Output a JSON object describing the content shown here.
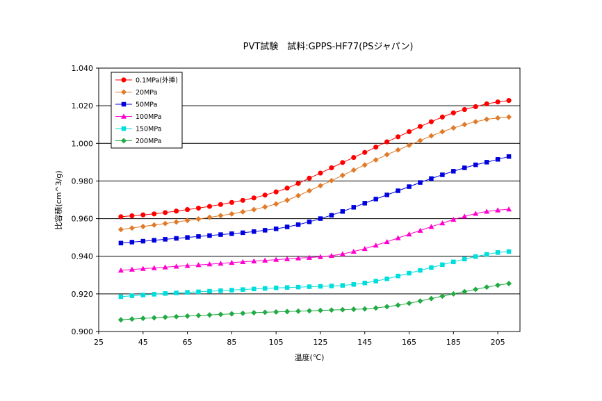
{
  "chart_data": {
    "type": "line",
    "title": "PVT試験　試料:GPPS-HF77(PSジャパン)",
    "xlabel": "温度(℃)",
    "ylabel": "比容積(cm^3/g)",
    "xlim": [
      25,
      215
    ],
    "ylim": [
      0.9,
      1.04
    ],
    "xticks": [
      "25",
      "45",
      "65",
      "85",
      "105",
      "125",
      "145",
      "165",
      "185",
      "205"
    ],
    "yticks": [
      "0.900",
      "0.920",
      "0.940",
      "0.960",
      "0.980",
      "1.000",
      "1.020",
      "1.040"
    ],
    "grid": "horizontal",
    "legend_position": "top-left",
    "x": [
      35,
      40,
      45,
      50,
      55,
      60,
      65,
      70,
      75,
      80,
      85,
      90,
      95,
      100,
      105,
      110,
      115,
      120,
      125,
      130,
      135,
      140,
      145,
      150,
      155,
      160,
      165,
      170,
      175,
      180,
      185,
      190,
      195,
      200,
      205,
      210
    ],
    "series": [
      {
        "name": "0.1MPa(外挿)",
        "color": "#ff0000",
        "marker": "circle",
        "values": [
          0.961,
          0.9615,
          0.962,
          0.9625,
          0.9632,
          0.964,
          0.9648,
          0.9656,
          0.9665,
          0.9675,
          0.9686,
          0.9697,
          0.971,
          0.9725,
          0.9742,
          0.9762,
          0.9787,
          0.9815,
          0.9842,
          0.987,
          0.9898,
          0.9925,
          0.9952,
          0.998,
          1.0008,
          1.0035,
          1.0062,
          1.009,
          1.0115,
          1.014,
          1.0162,
          1.018,
          1.0195,
          1.021,
          1.022,
          1.0228
        ]
      },
      {
        "name": "20MPa",
        "color": "#e07b2a",
        "marker": "diamond",
        "values": [
          0.9542,
          0.955,
          0.9558,
          0.9566,
          0.9574,
          0.9582,
          0.959,
          0.9598,
          0.9607,
          0.9616,
          0.9625,
          0.9636,
          0.9648,
          0.9662,
          0.9678,
          0.9698,
          0.9722,
          0.9748,
          0.9775,
          0.9802,
          0.983,
          0.9858,
          0.9885,
          0.9912,
          0.994,
          0.9965,
          0.999,
          1.0015,
          1.004,
          1.0062,
          1.0082,
          1.01,
          1.0115,
          1.0128,
          1.0135,
          1.014
        ]
      },
      {
        "name": "50MPa",
        "color": "#0000dd",
        "marker": "square",
        "values": [
          0.947,
          0.9475,
          0.948,
          0.9485,
          0.949,
          0.9495,
          0.95,
          0.9505,
          0.951,
          0.9515,
          0.952,
          0.9525,
          0.9531,
          0.9538,
          0.9546,
          0.9556,
          0.9568,
          0.9583,
          0.96,
          0.9618,
          0.9638,
          0.966,
          0.9682,
          0.9704,
          0.9726,
          0.9748,
          0.977,
          0.9792,
          0.9813,
          0.9833,
          0.9852,
          0.987,
          0.9886,
          0.99,
          0.9915,
          0.993
        ]
      },
      {
        "name": "100MPa",
        "color": "#ff00cc",
        "marker": "triangle",
        "values": [
          0.9325,
          0.933,
          0.9334,
          0.9338,
          0.9342,
          0.9346,
          0.935,
          0.9354,
          0.9358,
          0.9362,
          0.9366,
          0.937,
          0.9374,
          0.9378,
          0.9382,
          0.9386,
          0.939,
          0.9393,
          0.9397,
          0.9403,
          0.9412,
          0.9425,
          0.944,
          0.9458,
          0.9477,
          0.9497,
          0.9517,
          0.9537,
          0.9557,
          0.9576,
          0.9595,
          0.9612,
          0.9627,
          0.9638,
          0.9645,
          0.965
        ]
      },
      {
        "name": "150MPa",
        "color": "#00dddd",
        "marker": "square",
        "values": [
          0.9185,
          0.919,
          0.9194,
          0.9198,
          0.9202,
          0.9205,
          0.9208,
          0.9211,
          0.9214,
          0.9217,
          0.922,
          0.9223,
          0.9226,
          0.9229,
          0.9232,
          0.9234,
          0.9236,
          0.9238,
          0.924,
          0.9242,
          0.9245,
          0.925,
          0.9258,
          0.9268,
          0.928,
          0.9295,
          0.931,
          0.9325,
          0.934,
          0.9355,
          0.937,
          0.9385,
          0.9398,
          0.941,
          0.942,
          0.9425
        ]
      },
      {
        "name": "200MPa",
        "color": "#22aa44",
        "marker": "diamond",
        "values": [
          0.9062,
          0.9066,
          0.907,
          0.9073,
          0.9076,
          0.9079,
          0.9082,
          0.9085,
          0.9088,
          0.9091,
          0.9094,
          0.9097,
          0.91,
          0.9102,
          0.9104,
          0.9106,
          0.9108,
          0.911,
          0.9112,
          0.9114,
          0.9116,
          0.9118,
          0.912,
          0.9125,
          0.9132,
          0.914,
          0.915,
          0.9162,
          0.9175,
          0.9188,
          0.92,
          0.9212,
          0.9224,
          0.9236,
          0.9246,
          0.9255
        ]
      }
    ]
  }
}
